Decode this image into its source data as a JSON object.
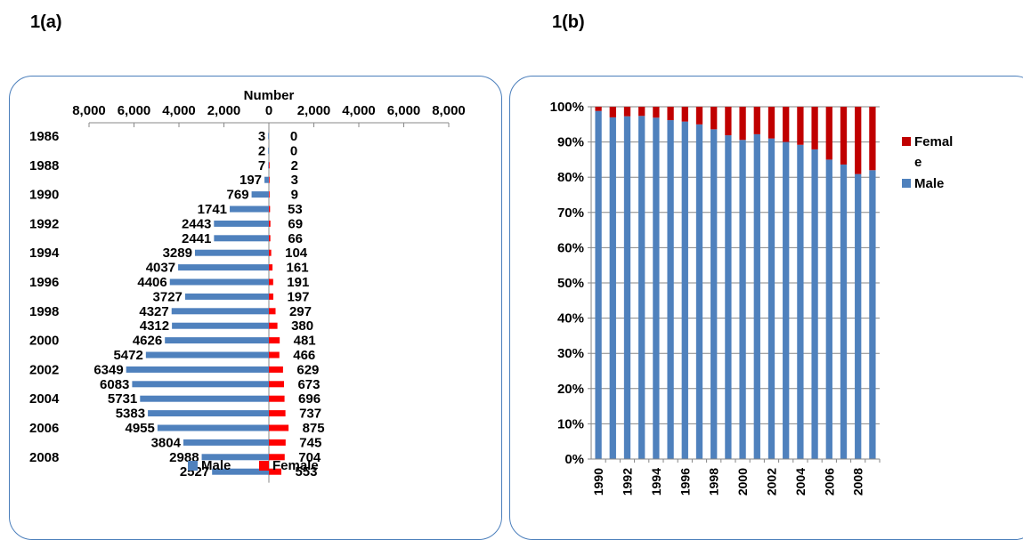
{
  "panel_labels": {
    "a": "1(a)",
    "b": "1(b)"
  },
  "chart_data": [
    {
      "type": "bar",
      "orientation": "horizontal-pyramid",
      "title": "Number",
      "x_ticks": [
        "8,000",
        "6,000",
        "4,000",
        "2,000",
        "0",
        "2,000",
        "4,000",
        "6,000",
        "8,000"
      ],
      "xlim": [
        -8000,
        8000
      ],
      "years": [
        1986,
        1987,
        1988,
        1989,
        1990,
        1991,
        1992,
        1993,
        1994,
        1995,
        1996,
        1997,
        1998,
        1999,
        2000,
        2001,
        2002,
        2003,
        2004,
        2005,
        2006,
        2007,
        2008,
        2009
      ],
      "y_tick_labels": [
        "1986",
        "1988",
        "1990",
        "1992",
        "1994",
        "1996",
        "1998",
        "2000",
        "2002",
        "2004",
        "2006",
        "2008"
      ],
      "series": [
        {
          "name": "Male",
          "color": "#4f81bd",
          "values": [
            3,
            2,
            7,
            197,
            769,
            1741,
            2443,
            2441,
            3289,
            4037,
            4406,
            3727,
            4327,
            4312,
            4626,
            5472,
            6349,
            6083,
            5731,
            5383,
            4955,
            3804,
            2988,
            2527
          ]
        },
        {
          "name": "Female",
          "color": "#ff0000",
          "values": [
            0,
            0,
            2,
            3,
            9,
            53,
            69,
            66,
            104,
            161,
            191,
            197,
            297,
            380,
            481,
            466,
            629,
            673,
            696,
            737,
            875,
            745,
            704,
            553
          ]
        }
      ],
      "legend": "bottom"
    },
    {
      "type": "bar",
      "stacked": "percent",
      "categories": [
        "1990",
        "1991",
        "1992",
        "1993",
        "1994",
        "1995",
        "1996",
        "1997",
        "1998",
        "1999",
        "2000",
        "2001",
        "2002",
        "2003",
        "2004",
        "2005",
        "2006",
        "2007",
        "2008",
        "2009"
      ],
      "x_tick_labels": [
        "1990",
        "1992",
        "1994",
        "1996",
        "1998",
        "2000",
        "2002",
        "2004",
        "2006",
        "2008"
      ],
      "y_ticks": [
        "0%",
        "10%",
        "20%",
        "30%",
        "40%",
        "50%",
        "60%",
        "70%",
        "80%",
        "90%",
        "100%"
      ],
      "ylim": [
        0,
        100
      ],
      "grid": true,
      "series": [
        {
          "name": "Male",
          "color": "#4f81bd",
          "values": [
            98.8,
            97.0,
            97.3,
            97.4,
            96.9,
            96.2,
            95.8,
            95.0,
            93.6,
            91.9,
            90.6,
            92.2,
            91.0,
            90.0,
            89.2,
            87.9,
            85.0,
            83.6,
            80.9,
            82.0
          ]
        },
        {
          "name": "Female",
          "color": "#c00000",
          "values": [
            1.2,
            3.0,
            2.7,
            2.6,
            3.1,
            3.8,
            4.2,
            5.0,
            6.4,
            8.1,
            9.4,
            7.8,
            9.0,
            10.0,
            10.8,
            12.1,
            15.0,
            16.4,
            19.1,
            18.0
          ]
        }
      ],
      "legend_labels": [
        "Femal\ne",
        "Male"
      ],
      "legend": "right"
    }
  ]
}
